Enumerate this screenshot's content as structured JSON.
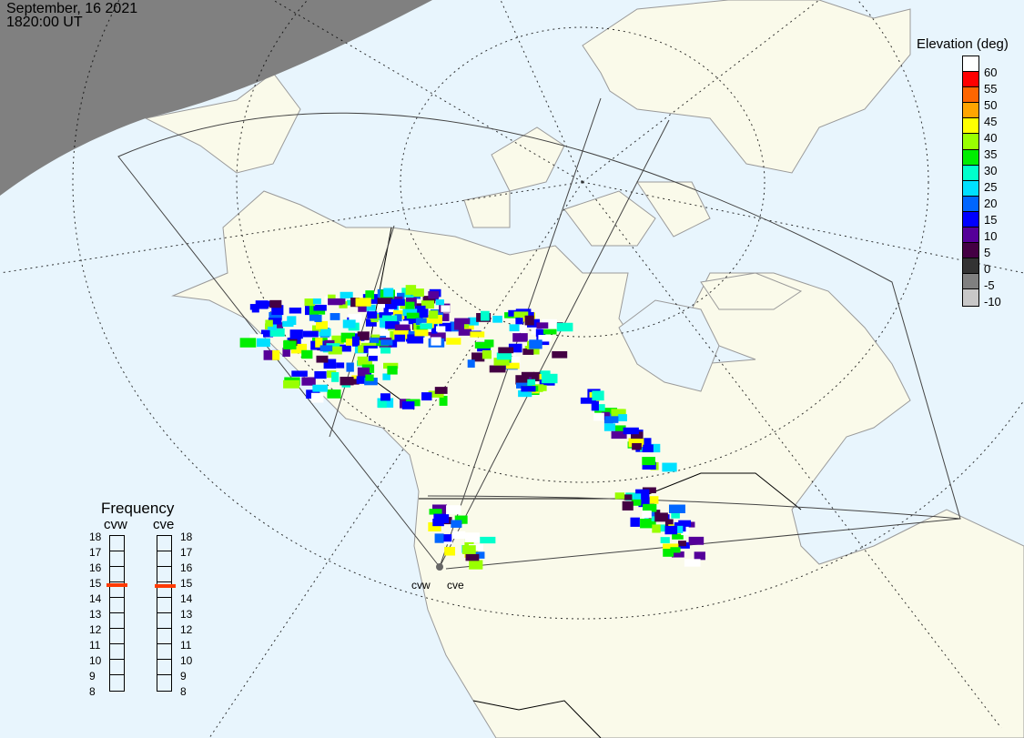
{
  "header": {
    "date": "September, 16 2021",
    "time": "1820:00 UT"
  },
  "elevation_legend": {
    "title": "Elevation (deg)",
    "colors": [
      "#ffffff",
      "#ff0000",
      "#ff6600",
      "#ffa500",
      "#ffff00",
      "#99ff00",
      "#00ee00",
      "#00ffcc",
      "#00e0ff",
      "#0066ff",
      "#0000ff",
      "#550099",
      "#440044",
      "#333333",
      "#808080",
      "#c8c8c8"
    ],
    "labels": [
      "60",
      "55",
      "50",
      "45",
      "40",
      "35",
      "30",
      "25",
      "20",
      "15",
      "10",
      "5",
      "0",
      "-5",
      "-10"
    ]
  },
  "frequency_panel": {
    "title": "Frequency",
    "unit_range": [
      8,
      18
    ],
    "ticks": [
      "18",
      "17",
      "16",
      "15",
      "14",
      "13",
      "12",
      "11",
      "10",
      "9",
      "8"
    ],
    "radars": [
      {
        "name": "cvw",
        "frequency_mhz": 14.8
      },
      {
        "name": "cve",
        "frequency_mhz": 14.75
      }
    ],
    "marker_color": "#ff3a00"
  },
  "sites": {
    "west": "cvw",
    "east": "cve"
  },
  "colors": {
    "ocean": "#e8f5fd",
    "land": "#fafaea",
    "night": "#808080",
    "border": "#999999"
  }
}
